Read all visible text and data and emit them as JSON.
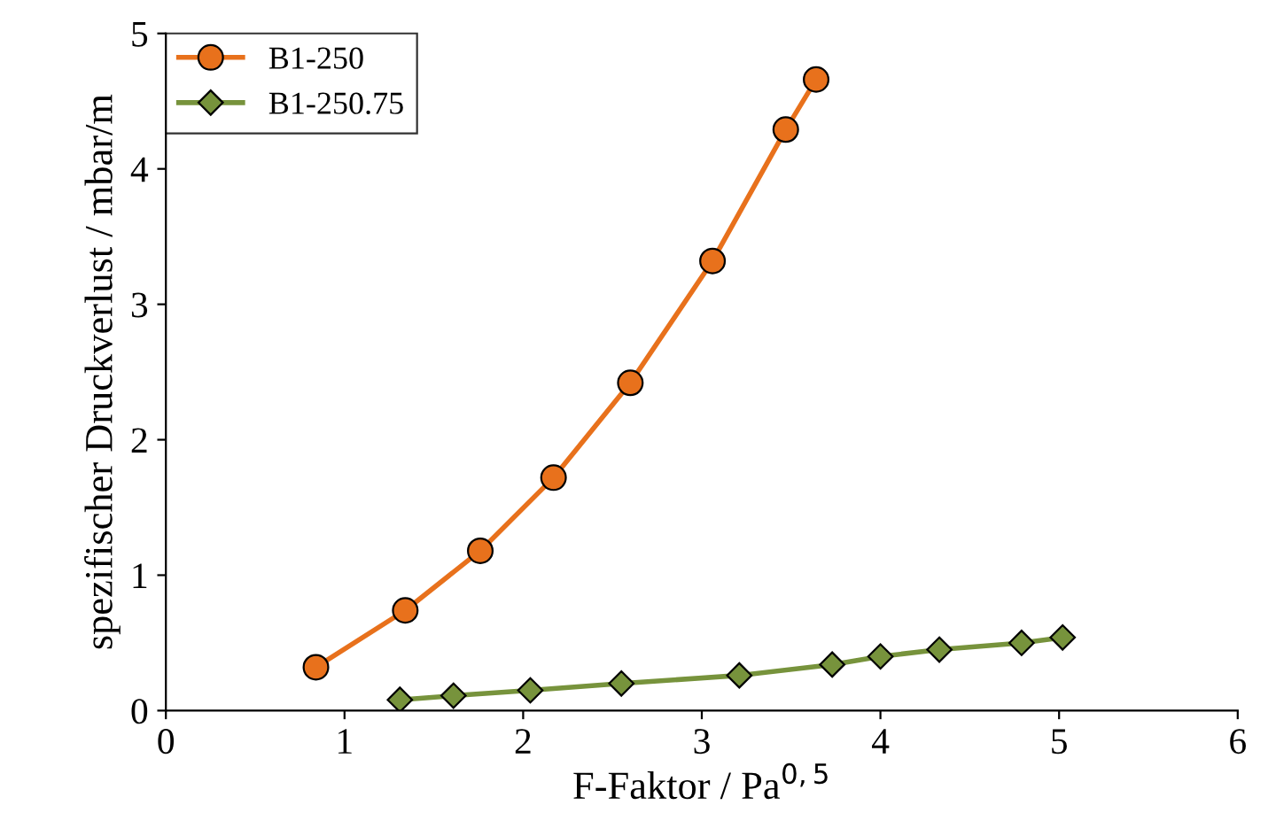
{
  "chart_data": {
    "type": "line",
    "xlabel": "F-Faktor / Pa$^{0,5}$",
    "ylabel": "spezifischer Druckverlust / mbar/m",
    "xlim": [
      0,
      6
    ],
    "xticks": [
      0,
      1,
      2,
      3,
      4,
      5,
      6
    ],
    "ylim": [
      0,
      5
    ],
    "yticks": [
      0,
      1,
      2,
      3,
      4,
      5
    ],
    "grid": false,
    "legend": "top left",
    "series": [
      {
        "name": "B1-250",
        "color": "#e8711c",
        "marker": "circle",
        "x": [
          0.84,
          1.34,
          1.76,
          2.17,
          2.6,
          3.06,
          3.47,
          3.64
        ],
        "values": [
          0.32,
          0.74,
          1.18,
          1.72,
          2.42,
          3.32,
          4.29,
          4.66
        ]
      },
      {
        "name": "B1-250.75",
        "color": "#77933c",
        "marker": "diamond",
        "x": [
          1.31,
          1.61,
          2.04,
          2.55,
          3.21,
          3.73,
          4.0,
          4.33,
          4.79,
          5.02
        ],
        "values": [
          0.08,
          0.11,
          0.15,
          0.2,
          0.26,
          0.34,
          0.4,
          0.45,
          0.5,
          0.54
        ]
      }
    ]
  }
}
